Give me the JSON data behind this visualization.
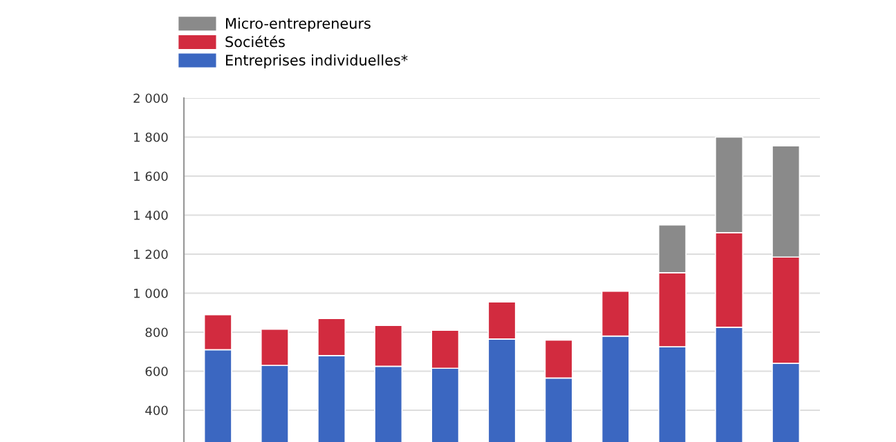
{
  "chart_data": {
    "type": "bar",
    "stacked": true,
    "categories": [
      null,
      null,
      null,
      null,
      null,
      null,
      null,
      null,
      null,
      null,
      null
    ],
    "series": [
      {
        "name": "Entreprises individuelles*",
        "color": "#3b67c1",
        "values": [
          710,
          630,
          680,
          625,
          615,
          765,
          565,
          780,
          725,
          825,
          640
        ]
      },
      {
        "name": "Sociétés",
        "color": "#d22b3f",
        "values": [
          180,
          185,
          190,
          210,
          195,
          190,
          195,
          230,
          380,
          485,
          545
        ]
      },
      {
        "name": "Micro-entrepreneurs",
        "color": "#8a8a8a",
        "values": [
          null,
          null,
          null,
          null,
          null,
          null,
          null,
          null,
          245,
          490,
          570
        ]
      }
    ],
    "ylim": [
      0,
      2000
    ],
    "yticks": [
      {
        "value": 400,
        "label": "400"
      },
      {
        "value": 600,
        "label": "600"
      },
      {
        "value": 800,
        "label": "800"
      },
      {
        "value": 1000,
        "label": "1 000"
      },
      {
        "value": 1200,
        "label": "1 200"
      },
      {
        "value": 1400,
        "label": "1 400"
      },
      {
        "value": 1600,
        "label": "1 600"
      },
      {
        "value": 1800,
        "label": "1 800"
      },
      {
        "value": 2000,
        "label": "2 000"
      }
    ],
    "grid": "y",
    "legend": "top left",
    "tick_labels": "y"
  }
}
